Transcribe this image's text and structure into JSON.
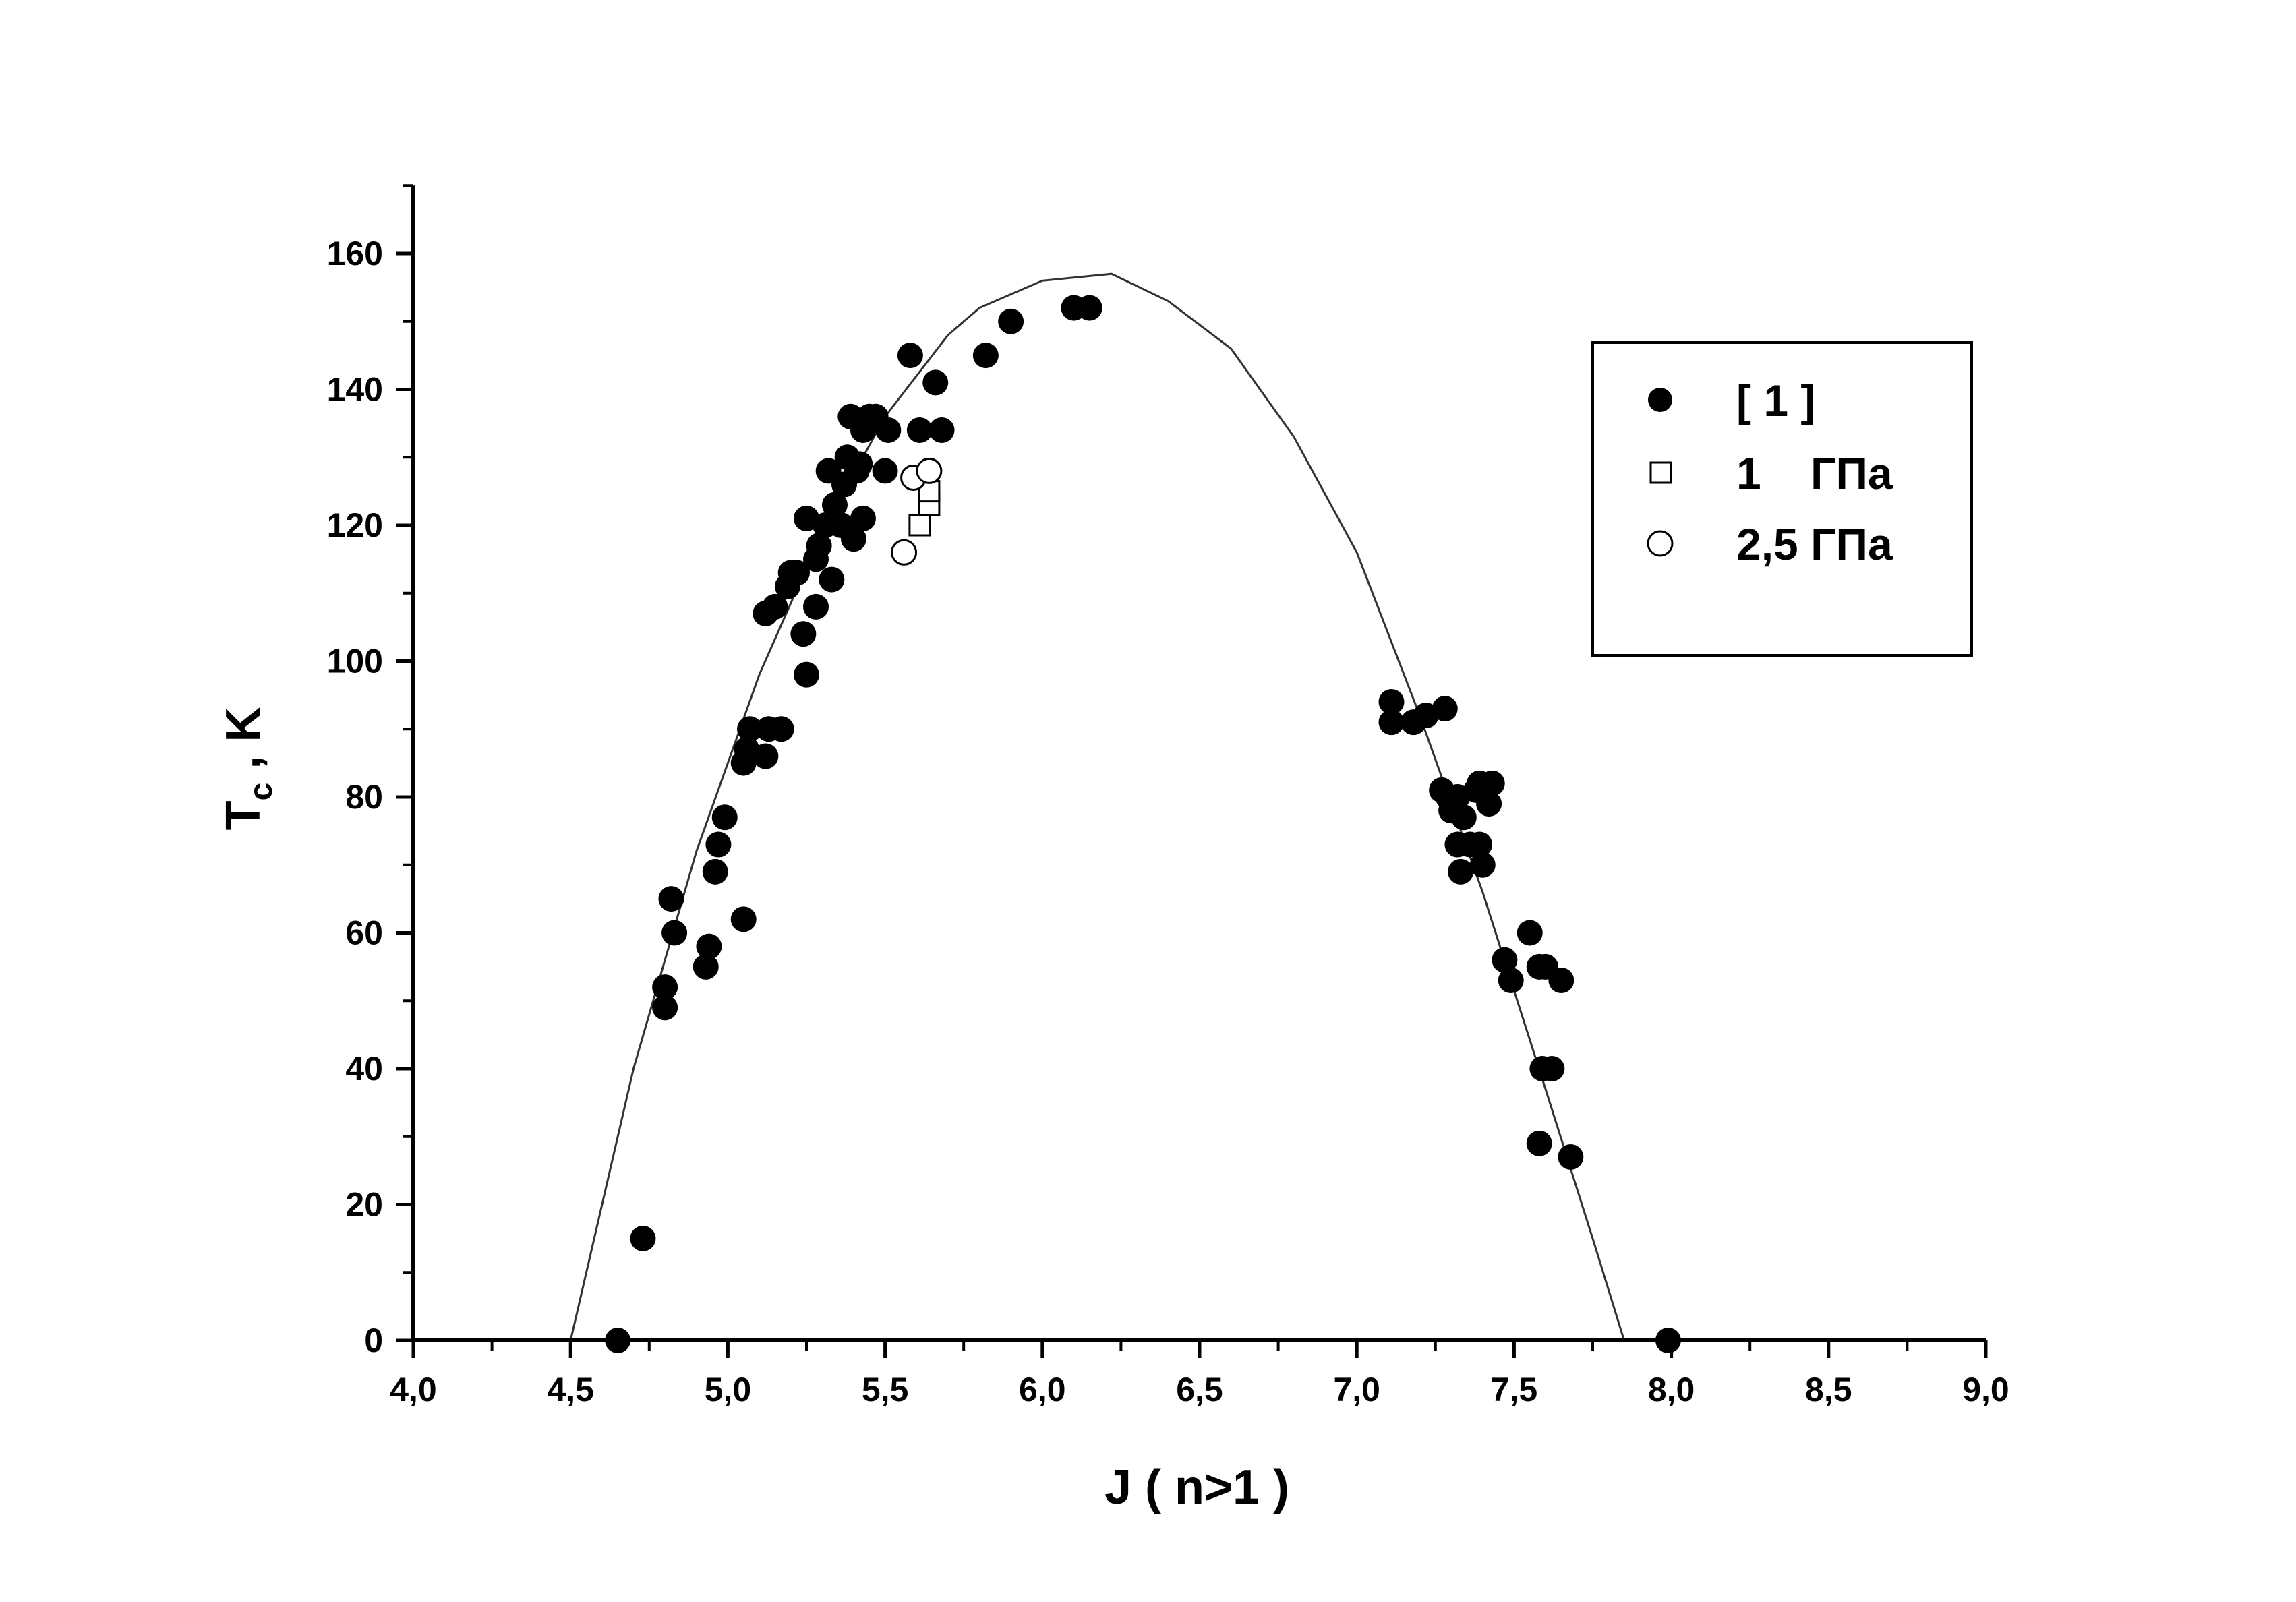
{
  "chart_data": {
    "type": "scatter",
    "title": "",
    "xlabel": "J ( n>1 )",
    "ylabel_main": "T",
    "ylabel_sub": "c",
    "ylabel_tail": " , K",
    "xlim": [
      4.0,
      9.0
    ],
    "ylim": [
      0,
      170
    ],
    "x_ticks": [
      4.0,
      4.5,
      5.0,
      5.5,
      6.0,
      6.5,
      7.0,
      7.5,
      8.0,
      8.5,
      9.0
    ],
    "x_tick_labels": [
      "4,0",
      "4,5",
      "5,0",
      "5,5",
      "6,0",
      "6,5",
      "7,0",
      "7,5",
      "8,0",
      "8,5",
      "9,0"
    ],
    "y_ticks": [
      0,
      20,
      40,
      60,
      80,
      100,
      120,
      140,
      160
    ],
    "y_tick_labels": [
      "0",
      "20",
      "40",
      "60",
      "80",
      "100",
      "120",
      "140",
      "160"
    ],
    "grid": false,
    "legend_position": "top-right",
    "series": [
      {
        "name": "[ 1 ]",
        "marker": "filled-circle",
        "color": "#000000",
        "points": [
          [
            4.65,
            0
          ],
          [
            4.73,
            15
          ],
          [
            4.8,
            49
          ],
          [
            4.8,
            52
          ],
          [
            4.82,
            65
          ],
          [
            4.83,
            60
          ],
          [
            4.93,
            55
          ],
          [
            4.94,
            58
          ],
          [
            4.96,
            69
          ],
          [
            4.97,
            73
          ],
          [
            4.99,
            77
          ],
          [
            5.05,
            62
          ],
          [
            5.05,
            85
          ],
          [
            5.06,
            87
          ],
          [
            5.07,
            90
          ],
          [
            5.12,
            86
          ],
          [
            5.13,
            90
          ],
          [
            5.17,
            90
          ],
          [
            5.12,
            107
          ],
          [
            5.15,
            108
          ],
          [
            5.19,
            111
          ],
          [
            5.2,
            113
          ],
          [
            5.22,
            113
          ],
          [
            5.24,
            104
          ],
          [
            5.25,
            98
          ],
          [
            5.25,
            121
          ],
          [
            5.28,
            108
          ],
          [
            5.28,
            115
          ],
          [
            5.29,
            117
          ],
          [
            5.31,
            120
          ],
          [
            5.32,
            128
          ],
          [
            5.33,
            112
          ],
          [
            5.34,
            123
          ],
          [
            5.36,
            120
          ],
          [
            5.37,
            126
          ],
          [
            5.38,
            130
          ],
          [
            5.39,
            136
          ],
          [
            5.4,
            118
          ],
          [
            5.41,
            128
          ],
          [
            5.42,
            129
          ],
          [
            5.43,
            134
          ],
          [
            5.43,
            121
          ],
          [
            5.45,
            136
          ],
          [
            5.47,
            136
          ],
          [
            5.5,
            128
          ],
          [
            5.51,
            134
          ],
          [
            5.58,
            145
          ],
          [
            5.61,
            134
          ],
          [
            5.66,
            141
          ],
          [
            5.68,
            134
          ],
          [
            5.82,
            145
          ],
          [
            5.9,
            150
          ],
          [
            6.1,
            152
          ],
          [
            6.15,
            152
          ],
          [
            7.11,
            94
          ],
          [
            7.11,
            91
          ],
          [
            7.18,
            91
          ],
          [
            7.22,
            92
          ],
          [
            7.28,
            93
          ],
          [
            7.27,
            81
          ],
          [
            7.29,
            80
          ],
          [
            7.3,
            78
          ],
          [
            7.32,
            73
          ],
          [
            7.32,
            80
          ],
          [
            7.33,
            69
          ],
          [
            7.34,
            77
          ],
          [
            7.36,
            73
          ],
          [
            7.38,
            81
          ],
          [
            7.39,
            73
          ],
          [
            7.39,
            82
          ],
          [
            7.4,
            70
          ],
          [
            7.42,
            79
          ],
          [
            7.43,
            82
          ],
          [
            7.47,
            56
          ],
          [
            7.49,
            53
          ],
          [
            7.55,
            60
          ],
          [
            7.58,
            55
          ],
          [
            7.6,
            55
          ],
          [
            7.65,
            53
          ],
          [
            7.59,
            40
          ],
          [
            7.62,
            40
          ],
          [
            7.58,
            29
          ],
          [
            7.68,
            27
          ],
          [
            7.99,
            0
          ]
        ]
      },
      {
        "name": "1    ГПа",
        "marker": "open-square",
        "color": "#000000",
        "points": [
          [
            5.61,
            120
          ],
          [
            5.64,
            123
          ],
          [
            5.64,
            125
          ]
        ]
      },
      {
        "name": "2,5 ГПа",
        "marker": "open-circle",
        "color": "#000000",
        "points": [
          [
            5.56,
            116
          ],
          [
            5.59,
            127
          ],
          [
            5.64,
            128
          ]
        ]
      }
    ],
    "fit_curve": {
      "type": "line",
      "color": "#333333",
      "points": [
        [
          4.5,
          0
        ],
        [
          4.7,
          40
        ],
        [
          4.9,
          72
        ],
        [
          5.1,
          98
        ],
        [
          5.3,
          119
        ],
        [
          5.5,
          136
        ],
        [
          5.7,
          148
        ],
        [
          5.8,
          152
        ],
        [
          6.0,
          156
        ],
        [
          6.22,
          157
        ],
        [
          6.4,
          153
        ],
        [
          6.6,
          146
        ],
        [
          6.8,
          133
        ],
        [
          7.0,
          116
        ],
        [
          7.2,
          92
        ],
        [
          7.4,
          66
        ],
        [
          7.6,
          37
        ],
        [
          7.75,
          15
        ],
        [
          7.85,
          0
        ]
      ]
    }
  }
}
